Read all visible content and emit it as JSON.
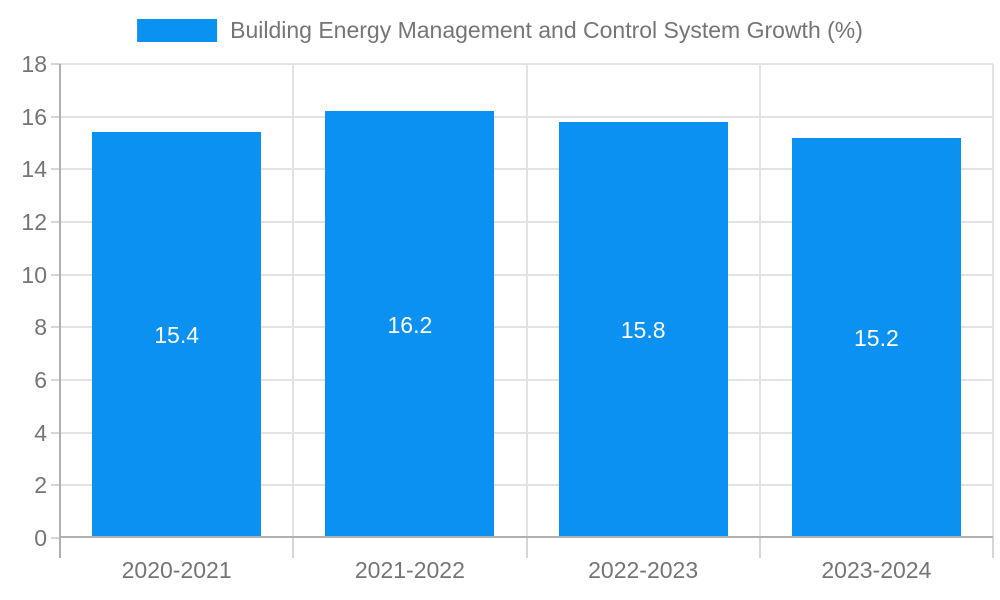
{
  "chart_data": {
    "type": "bar",
    "title": "",
    "legend": "Building Energy Management and Control System Growth (%)",
    "legend_position": "top-center",
    "categories": [
      "2020-2021",
      "2021-2022",
      "2022-2023",
      "2023-2024"
    ],
    "values": [
      15.4,
      16.2,
      15.8,
      15.2
    ],
    "xlabel": "",
    "ylabel": "",
    "ylim": [
      0,
      18
    ],
    "yticks": [
      0,
      2,
      4,
      6,
      8,
      10,
      12,
      14,
      16,
      18
    ],
    "grid": true,
    "colors": {
      "bar": "#0a91f2",
      "grid": "#e3e3e3",
      "tick": "#d6d6d6",
      "axis": "#b0b0b0",
      "text": "#757575",
      "value_label": "#ffffff",
      "background": "#ffffff"
    }
  }
}
